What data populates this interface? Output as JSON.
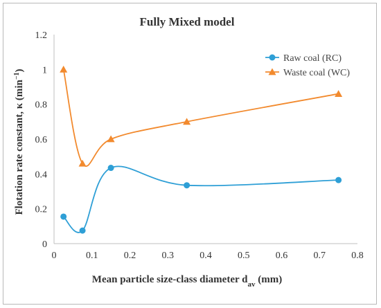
{
  "chart_data": {
    "type": "line",
    "title": "Fully Mixed model",
    "xlabel_main": "Mean particle size-class diameter d",
    "xlabel_sub": "av",
    "xlabel_unit": " (mm)",
    "ylabel_main": "Flotation rate constant, κ (min",
    "ylabel_sup": "−1",
    "ylabel_end": ")",
    "xlim": [
      0,
      0.8
    ],
    "ylim": [
      0,
      1.2
    ],
    "xticks": [
      "0",
      "0.1",
      "0.2",
      "0.3",
      "0.4",
      "0.5",
      "0.6",
      "0.7",
      "0.8"
    ],
    "yticks": [
      "0",
      "0.2",
      "0.4",
      "0.6",
      "0.8",
      "1",
      "1.2"
    ],
    "grid": false,
    "legend_position": "top-right",
    "series": [
      {
        "name": "Raw  coal (RC)",
        "color": "#2e9fd6",
        "marker": "circle",
        "x": [
          0.025,
          0.075,
          0.15,
          0.35,
          0.75
        ],
        "y": [
          0.155,
          0.075,
          0.435,
          0.335,
          0.365
        ]
      },
      {
        "name": "Waste coal (WC)",
        "color": "#f28a2e",
        "marker": "triangle",
        "x": [
          0.025,
          0.075,
          0.15,
          0.35,
          0.75
        ],
        "y": [
          1.0,
          0.46,
          0.6,
          0.7,
          0.86
        ]
      }
    ]
  }
}
